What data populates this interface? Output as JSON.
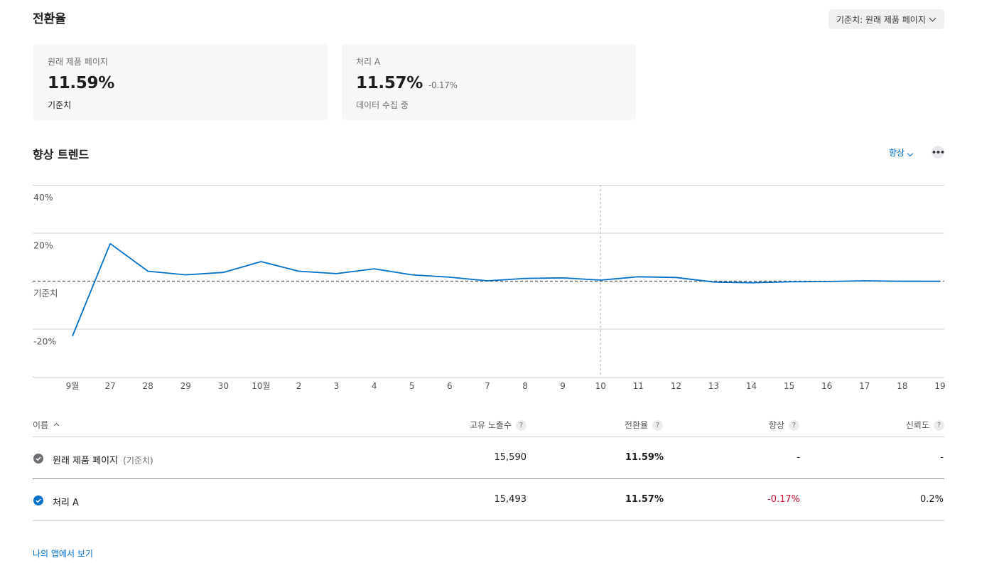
{
  "header": {
    "title": "전환율",
    "baseline_select": "기준치: 원래 제품 페이지"
  },
  "cards": [
    {
      "label": "원래 제품 페이지",
      "value": "11.59%",
      "delta": "",
      "sub": "기준치"
    },
    {
      "label": "처리 A",
      "value": "11.57%",
      "delta": "-0.17%",
      "sub": "데이터 수집 중"
    }
  ],
  "trend": {
    "title": "향상 트렌드",
    "metric_select": "향상",
    "more_icon": "more-icon"
  },
  "chart_data": {
    "type": "line",
    "title": "",
    "xlabel": "",
    "ylabel": "",
    "x_labels": [
      "9월",
      "27",
      "28",
      "29",
      "30",
      "10월",
      "2",
      "3",
      "4",
      "5",
      "6",
      "7",
      "8",
      "9",
      "10",
      "11",
      "12",
      "13",
      "14",
      "15",
      "16",
      "17",
      "18",
      "19"
    ],
    "y_ticks": [
      {
        "value": 40,
        "label": "40%"
      },
      {
        "value": 20,
        "label": "20%"
      },
      {
        "value": 0,
        "label": "기준치"
      },
      {
        "value": -20,
        "label": "-20%"
      }
    ],
    "ylim": [
      -40,
      40
    ],
    "baseline_value": 0,
    "marker_x_index": 14,
    "series": [
      {
        "values": [
          -23,
          15.5,
          4,
          2.5,
          3.5,
          8,
          4,
          3,
          5,
          2.5,
          1.5,
          0,
          1,
          1.2,
          0.3,
          1.7,
          1.4,
          -0.5,
          -0.8,
          -0.4,
          -0.3,
          0,
          -0.2,
          -0.2
        ],
        "color": "#0070c9"
      }
    ],
    "grid": true
  },
  "table": {
    "columns": [
      {
        "label": "이름",
        "sort_icon": "sort-up-icon"
      },
      {
        "label": "고유 노출수",
        "help": "?"
      },
      {
        "label": "전환율",
        "help": "?"
      },
      {
        "label": "향상",
        "help": "?"
      },
      {
        "label": "신뢰도",
        "help": "?"
      }
    ],
    "rows": [
      {
        "name": "원래 제품 페이지",
        "tag": "(기준치)",
        "impressions": "15,590",
        "conversion": "11.59%",
        "lift": "-",
        "confidence": "-",
        "icon": "check-circle-gray-icon"
      },
      {
        "name": "처리 A",
        "tag": "",
        "impressions": "15,493",
        "conversion": "11.57%",
        "lift": "-0.17%",
        "confidence": "0.2%",
        "icon": "check-circle-blue-icon"
      }
    ]
  },
  "footer": {
    "link": "나의 앱에서 보기"
  },
  "colors": {
    "accent": "#0070c9",
    "negative": "#c4112f",
    "gray_check": "#6e6e73"
  }
}
